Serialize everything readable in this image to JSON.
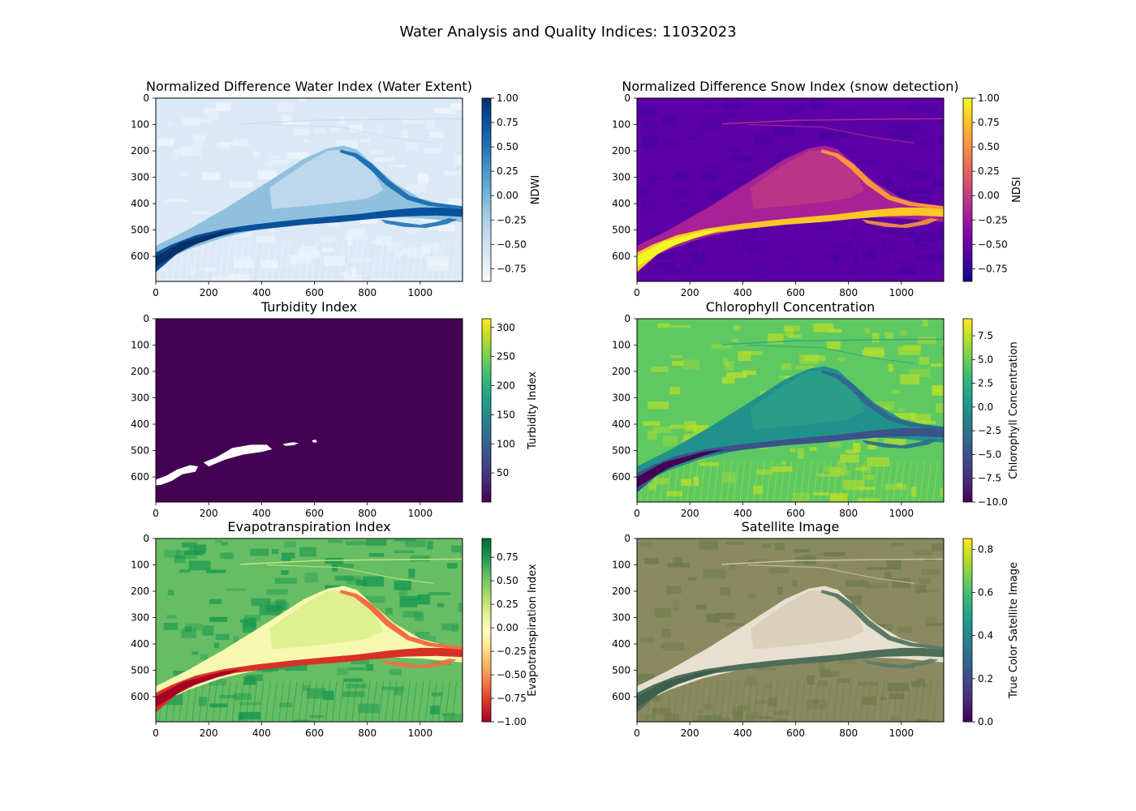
{
  "figure_title": "Water Analysis and Quality Indices: 11032023",
  "chart_data": [
    {
      "type": "heatmap",
      "title": "Normalized Difference Water Index (Water Extent)",
      "colormap": "Blues",
      "x_ticks": [
        0,
        200,
        400,
        600,
        800,
        1000
      ],
      "y_ticks": [
        0,
        100,
        200,
        300,
        400,
        500,
        600
      ],
      "x_extent": [
        0,
        1160
      ],
      "y_extent": [
        0,
        695
      ],
      "colorbar": {
        "label": "NDWI",
        "range": [
          -0.88,
          1.0
        ],
        "ticks": [
          1.0,
          0.75,
          0.5,
          0.25,
          0.0,
          -0.25,
          -0.5,
          -0.75
        ],
        "tick_labels": [
          "1.00",
          "0.75",
          "0.50",
          "0.25",
          "0.00",
          "−0.25",
          "−0.50",
          "−0.75"
        ]
      },
      "colors": {
        "land": "#dbe9f6",
        "land_alt": "#eef5fc",
        "floodplain": "#8fc1de",
        "floodplain_light": "#c6dbef",
        "water": "#08519c",
        "water_deep": "#08306b",
        "channel": "#2171b5"
      }
    },
    {
      "type": "heatmap",
      "title": "Normalized Difference Snow Index (snow detection)",
      "colormap": "plasma",
      "x_ticks": [
        0,
        200,
        400,
        600,
        800,
        1000
      ],
      "y_ticks": [
        0,
        100,
        200,
        300,
        400,
        500,
        600
      ],
      "x_extent": [
        0,
        1160
      ],
      "y_extent": [
        0,
        695
      ],
      "colorbar": {
        "label": "NDSI",
        "range": [
          -0.88,
          1.0
        ],
        "ticks": [
          1.0,
          0.75,
          0.5,
          0.25,
          0.0,
          -0.25,
          -0.5,
          -0.75
        ],
        "tick_labels": [
          "1.00",
          "0.75",
          "0.50",
          "0.25",
          "0.00",
          "−0.25",
          "−0.50",
          "−0.75"
        ]
      },
      "colors": {
        "land": "#5c01a6",
        "land_alt": "#4a02a0",
        "floodplain": "#a82296",
        "floodplain_light": "#bd3786",
        "water": "#fdc627",
        "water_deep": "#f0f921",
        "channel": "#f89540"
      }
    },
    {
      "type": "heatmap",
      "title": "Turbidity Index",
      "colormap": "viridis",
      "x_ticks": [
        0,
        200,
        400,
        600,
        800,
        1000
      ],
      "y_ticks": [
        0,
        100,
        200,
        300,
        400,
        500,
        600
      ],
      "x_extent": [
        0,
        1160
      ],
      "y_extent": [
        0,
        695
      ],
      "colorbar": {
        "label": "Turbidity Index",
        "range": [
          0,
          315
        ],
        "ticks": [
          300,
          250,
          200,
          150,
          100,
          50
        ],
        "tick_labels": [
          "300",
          "250",
          "200",
          "150",
          "100",
          "50"
        ]
      },
      "colors": {
        "background": "#440154",
        "nodata": "#ffffff"
      }
    },
    {
      "type": "heatmap",
      "title": "Chlorophyll Concentration",
      "colormap": "viridis",
      "x_ticks": [
        0,
        200,
        400,
        600,
        800,
        1000
      ],
      "y_ticks": [
        0,
        100,
        200,
        300,
        400,
        500,
        600
      ],
      "x_extent": [
        0,
        1160
      ],
      "y_extent": [
        0,
        695
      ],
      "colorbar": {
        "label": "Chlorophyll Concentration",
        "range": [
          -10.0,
          9.3
        ],
        "ticks": [
          7.5,
          5.0,
          2.5,
          0.0,
          -2.5,
          -5.0,
          -7.5,
          -10.0
        ],
        "tick_labels": [
          "7.5",
          "5.0",
          "2.5",
          "0.0",
          "−2.5",
          "−5.0",
          "−7.5",
          "−10.0"
        ]
      },
      "colors": {
        "land": "#5ec962",
        "land_alt": "#b5de2b",
        "floodplain": "#21918c",
        "floodplain_light": "#2a9d8a",
        "water": "#3b528b",
        "water_deep": "#440154",
        "channel": "#31688e"
      }
    },
    {
      "type": "heatmap",
      "title": "Evapotranspiration Index",
      "colormap": "RdYlGn",
      "x_ticks": [
        0,
        200,
        400,
        600,
        800,
        1000
      ],
      "y_ticks": [
        0,
        100,
        200,
        300,
        400,
        500,
        600
      ],
      "x_extent": [
        0,
        1160
      ],
      "y_extent": [
        0,
        695
      ],
      "colorbar": {
        "label": "Evapotranspiration Index",
        "range": [
          -1.0,
          0.95
        ],
        "ticks": [
          0.75,
          0.5,
          0.25,
          0.0,
          -0.25,
          -0.5,
          -0.75,
          -1.0
        ],
        "tick_labels": [
          "0.75",
          "0.50",
          "0.25",
          "0.00",
          "−0.25",
          "−0.50",
          "−0.75",
          "−1.00"
        ]
      },
      "colors": {
        "land": "#66bd63",
        "land_alt": "#1a9850",
        "floodplain": "#f7f8b0",
        "floodplain_light": "#d9ef8b",
        "water": "#d73027",
        "water_deep": "#a50026",
        "channel": "#f46d43"
      }
    },
    {
      "type": "heatmap",
      "title": "Satellite Image",
      "colormap": "viridis",
      "x_ticks": [
        0,
        200,
        400,
        600,
        800,
        1000
      ],
      "y_ticks": [
        0,
        100,
        200,
        300,
        400,
        500,
        600
      ],
      "x_extent": [
        0,
        1160
      ],
      "y_extent": [
        0,
        695
      ],
      "colorbar": {
        "label": "True Color Satellite Image",
        "range": [
          0.0,
          0.85
        ],
        "ticks": [
          0.8,
          0.6,
          0.4,
          0.2,
          0.0
        ],
        "tick_labels": [
          "0.8",
          "0.6",
          "0.4",
          "0.2",
          "0.0"
        ]
      },
      "colors": {
        "land": "#8a8a62",
        "land_alt": "#6f7a4a",
        "floodplain": "#e7e0cf",
        "floodplain_light": "#d8cdb5",
        "water": "#4e6e5a",
        "water_deep": "#3d5e4c",
        "channel": "#5d7a66"
      }
    }
  ]
}
